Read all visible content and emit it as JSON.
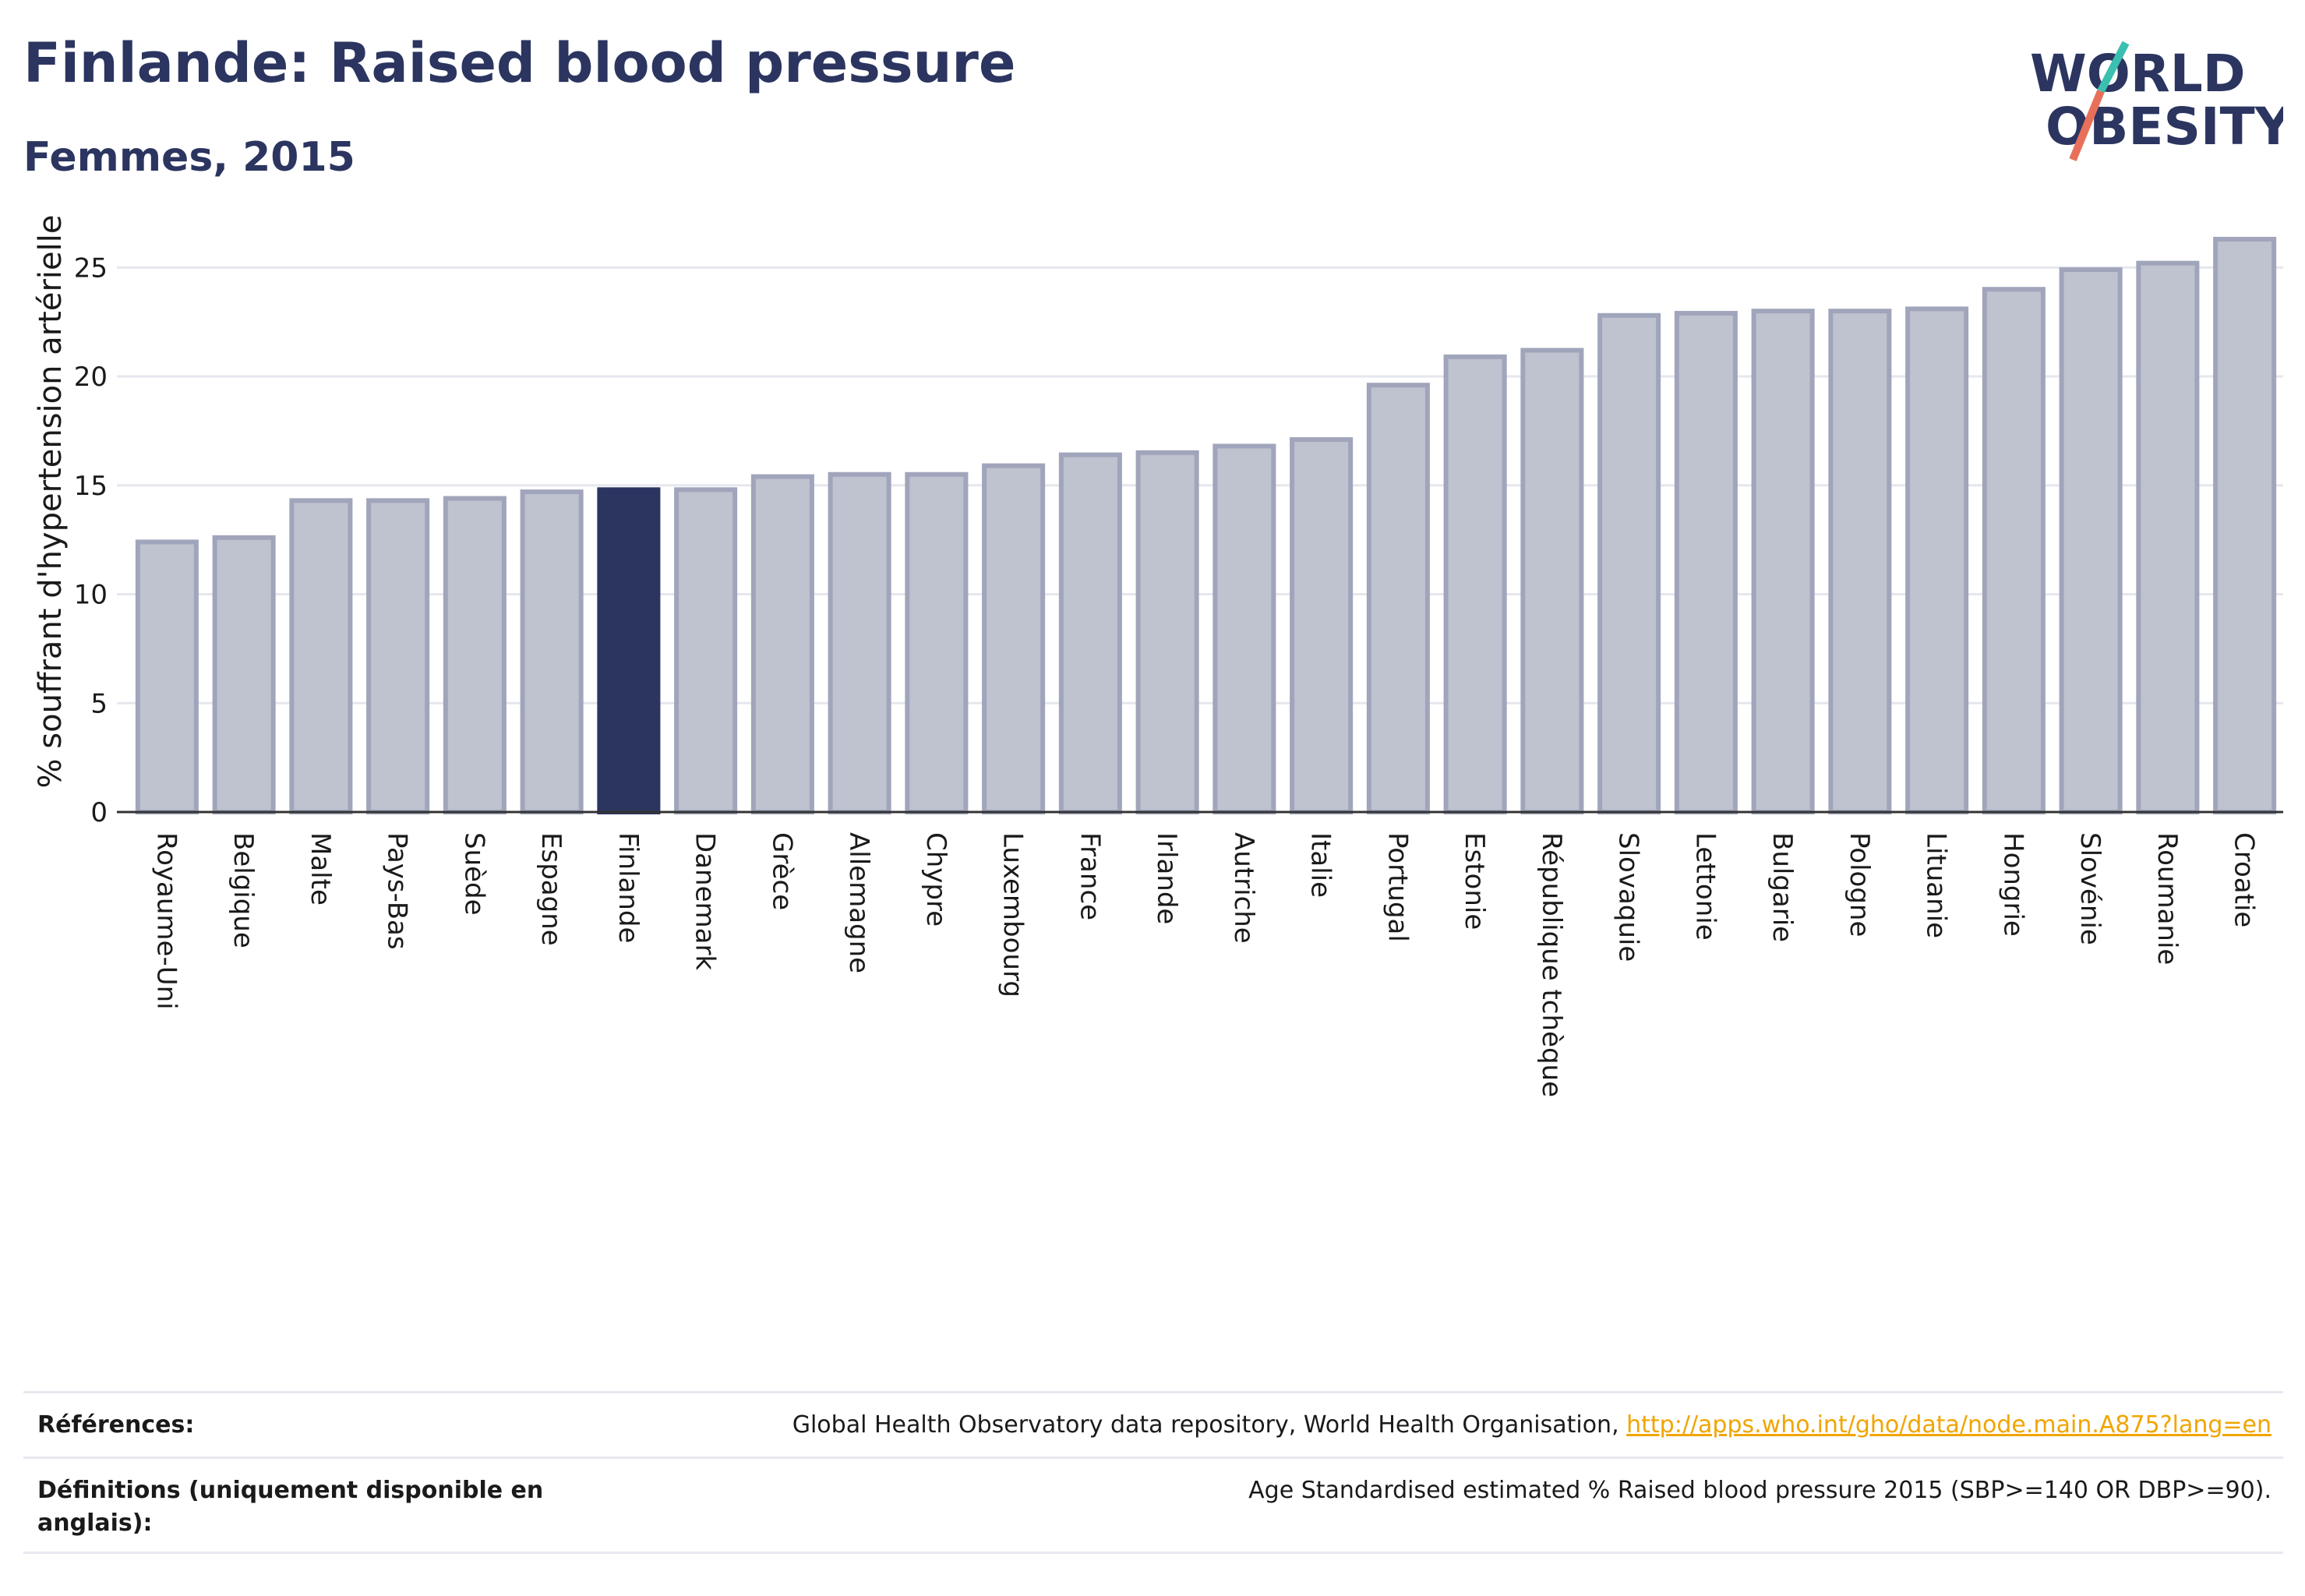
{
  "header": {
    "title": "Finlande: Raised blood pressure",
    "subtitle": "Femmes, 2015"
  },
  "logo": {
    "line1": "WORLD",
    "line2": "OBESITY"
  },
  "chart_data": {
    "type": "bar",
    "ylabel": "% souffrant d'hypertension artérielle",
    "ylim": [
      0,
      27.8
    ],
    "yticks": [
      0,
      5,
      10,
      15,
      20,
      25
    ],
    "grid": true,
    "highlight": "Finlande",
    "colors": {
      "bar": "#bfc2cf",
      "bar_edge": "#a0a5bb",
      "highlight": "#2b3560"
    },
    "categories": [
      "Royaume-Uni",
      "Belgique",
      "Malte",
      "Pays-Bas",
      "Suède",
      "Espagne",
      "Finlande",
      "Danemark",
      "Grèce",
      "Allemagne",
      "Chypre",
      "Luxembourg",
      "France",
      "Irlande",
      "Autriche",
      "Italie",
      "Portugal",
      "Estonie",
      "République tchèque",
      "Slovaquie",
      "Lettonie",
      "Bulgarie",
      "Pologne",
      "Lituanie",
      "Hongrie",
      "Slovénie",
      "Roumanie",
      "Croatie"
    ],
    "values": [
      12.4,
      12.6,
      14.3,
      14.3,
      14.4,
      14.7,
      14.8,
      14.8,
      15.4,
      15.5,
      15.5,
      15.9,
      16.4,
      16.5,
      16.8,
      17.1,
      19.6,
      20.9,
      21.2,
      22.8,
      22.9,
      23.0,
      23.0,
      23.1,
      24.0,
      24.9,
      25.2,
      26.3
    ]
  },
  "footer": {
    "references_label": "Références:",
    "references_text": "Global Health Observatory data repository, World Health Organisation, ",
    "references_link": "http://apps.who.int/gho/data/node.main.A875?lang=en",
    "definitions_label": "Définitions (uniquement disponible en anglais):",
    "definitions_text": "Age Standardised estimated % Raised blood pressure 2015 (SBP>=140 OR DBP>=90)."
  }
}
